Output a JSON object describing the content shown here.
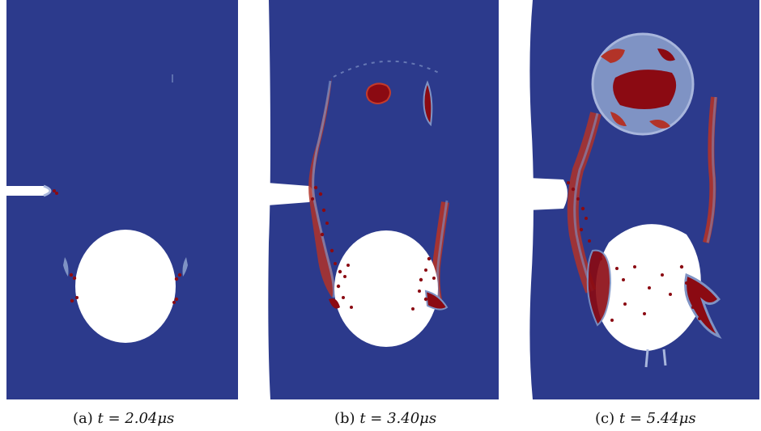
{
  "figure": {
    "panels": [
      {
        "label": "(a)",
        "expr": "t = 2.04μs"
      },
      {
        "label": "(b)",
        "expr": "t = 3.40μs"
      },
      {
        "label": "(c)",
        "expr": "t = 5.44μs"
      }
    ],
    "colors": {
      "background_field": "#2c3a8c",
      "damage_dark": "#8b0a12",
      "damage_mid": "#c33a2a",
      "damage_light": "#7f93c4",
      "hole": "#ffffff"
    }
  }
}
